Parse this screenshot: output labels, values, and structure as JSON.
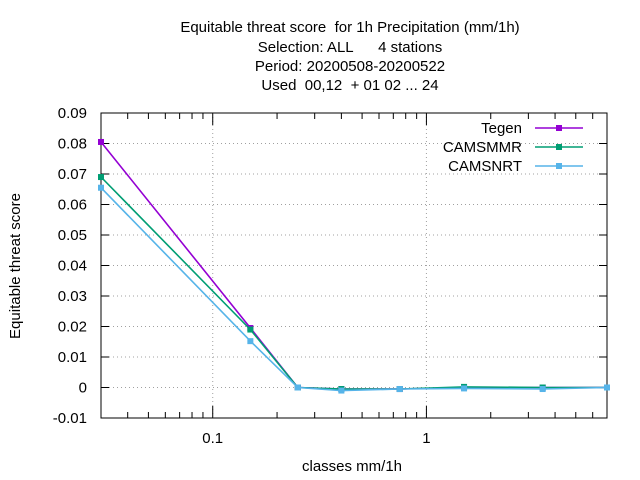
{
  "chart_data": {
    "type": "line",
    "title": [
      "Equitable threat score  for 1h Precipitation (mm/1h)",
      "Selection: ALL      4 stations",
      "Period: 20200508-20200522",
      "Used  00,12  + 01 02 ... 24"
    ],
    "xlabel": "classes mm/1h",
    "ylabel": "Equitable threat score",
    "xscale": "log",
    "xlim": [
      0.03,
      7.0
    ],
    "ylim": [
      -0.01,
      0.09
    ],
    "yticks": [
      -0.01,
      0,
      0.01,
      0.02,
      0.03,
      0.04,
      0.05,
      0.06,
      0.07,
      0.08,
      0.09
    ],
    "ytick_labels": [
      "-0.01",
      "0",
      "0.01",
      "0.02",
      "0.03",
      "0.04",
      "0.05",
      "0.06",
      "0.07",
      "0.08",
      "0.09"
    ],
    "xticks_labeled": [
      0.1,
      1
    ],
    "xtick_labels": [
      "0.1",
      "1"
    ],
    "grid": true,
    "legend_position": "top-right",
    "series": [
      {
        "name": "Tegen",
        "color": "#9400d3",
        "x": [
          0.03,
          0.15,
          0.25,
          0.4,
          0.75,
          1.5,
          3.5,
          7.0
        ],
        "y": [
          0.0805,
          0.0195,
          0.0,
          -0.0005,
          -0.0005,
          0.0,
          0.0,
          0.0
        ]
      },
      {
        "name": "CAMSMMR",
        "color": "#009e73",
        "x": [
          0.03,
          0.15,
          0.25,
          0.4,
          0.75,
          1.5,
          3.5,
          7.0
        ],
        "y": [
          0.069,
          0.019,
          0.0,
          -0.0005,
          -0.0005,
          0.0002,
          0.0,
          0.0
        ]
      },
      {
        "name": "CAMSNRT",
        "color": "#56b4e9",
        "x": [
          0.03,
          0.15,
          0.25,
          0.4,
          0.75,
          1.5,
          3.5,
          7.0
        ],
        "y": [
          0.0655,
          0.0152,
          0.0,
          -0.001,
          -0.0005,
          -0.0003,
          -0.0005,
          0.0
        ]
      }
    ]
  }
}
